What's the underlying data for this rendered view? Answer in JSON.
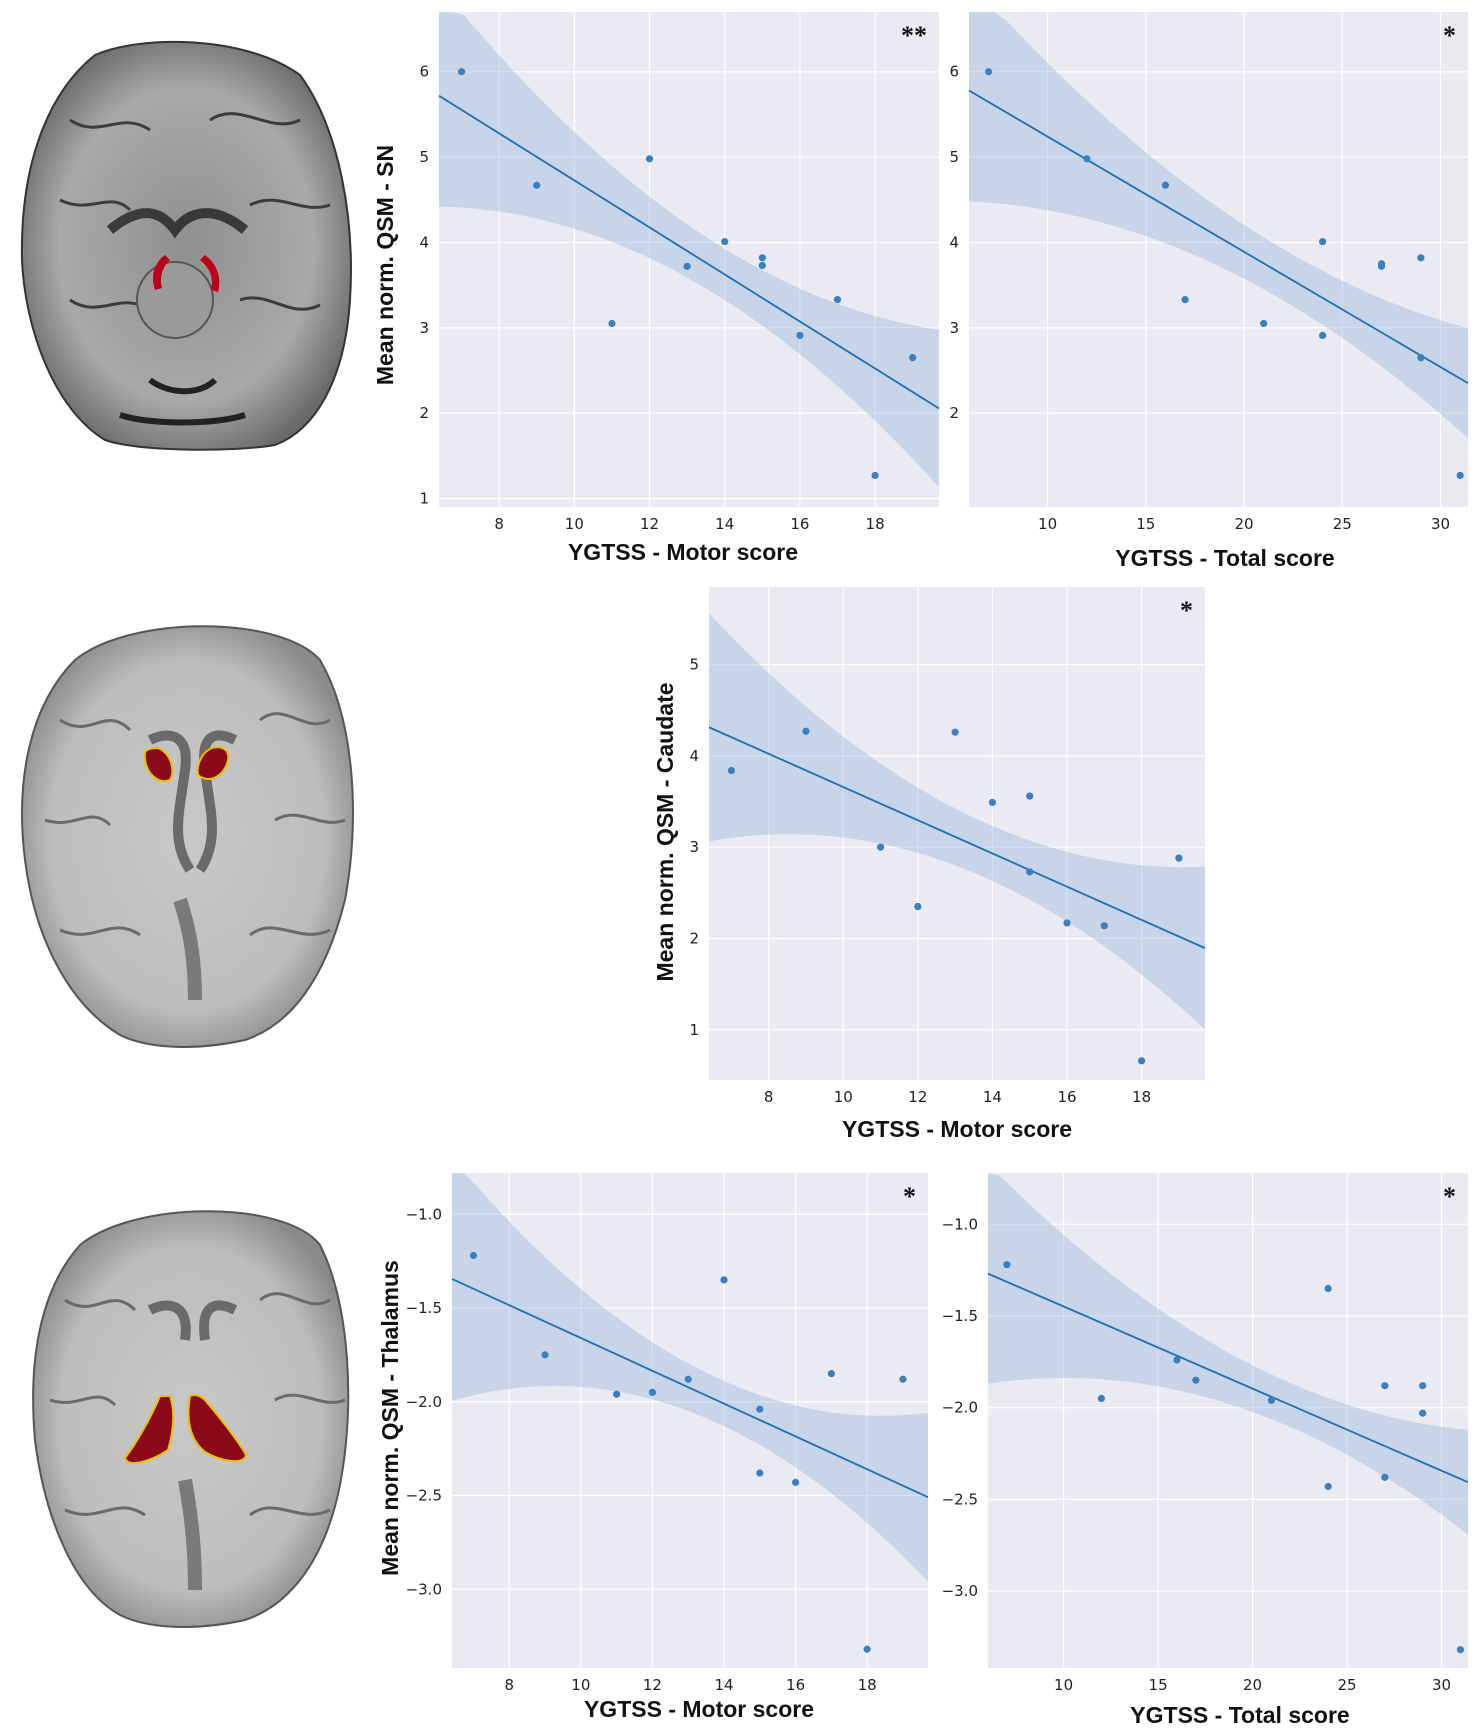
{
  "colors": {
    "point": "#3a7fbf",
    "fit_line": "#1f6fb4",
    "band": "#9fbcdb",
    "plot_bg": "#eaeaf2",
    "roi_red": "#c0001a",
    "roi_dark_red": "#8b0a1a"
  },
  "chart_data": [
    {
      "id": "sn_motor",
      "type": "scatter",
      "xlabel": "YGTSS - Motor score",
      "ylabel": "Mean norm. QSM - SN",
      "significance": "**",
      "xlim": [
        6.4,
        19.7
      ],
      "ylim": [
        0.9,
        6.7
      ],
      "xticks": [
        8,
        10,
        12,
        14,
        16,
        18
      ],
      "yticks": [
        1,
        2,
        3,
        4,
        5,
        6
      ],
      "tick_labels_x": [
        "8",
        "10",
        "12",
        "14",
        "16",
        "18"
      ],
      "tick_labels_y": [
        "1",
        "2",
        "3",
        "4",
        "5",
        "6"
      ],
      "points": [
        [
          7,
          6.0
        ],
        [
          9,
          4.67
        ],
        [
          11,
          3.05
        ],
        [
          12,
          4.98
        ],
        [
          13,
          3.72
        ],
        [
          14,
          4.01
        ],
        [
          15,
          3.82
        ],
        [
          15,
          3.73
        ],
        [
          16,
          2.91
        ],
        [
          17,
          3.33
        ],
        [
          18,
          1.27
        ],
        [
          19,
          2.65
        ]
      ],
      "fit": {
        "slope": -0.2755,
        "intercept": 7.482
      },
      "ci_half_edge": 1.3,
      "ci_half_center": 0.3
    },
    {
      "id": "sn_total",
      "type": "scatter",
      "xlabel": "YGTSS - Total score",
      "ylabel": "",
      "significance": "*",
      "xlim": [
        6.0,
        31.4
      ],
      "ylim": [
        0.9,
        6.7
      ],
      "xticks": [
        10,
        15,
        20,
        25,
        30
      ],
      "yticks": [
        2,
        3,
        4,
        5,
        6
      ],
      "tick_labels_x": [
        "10",
        "15",
        "20",
        "25",
        "30"
      ],
      "tick_labels_y": [
        "2",
        "3",
        "4",
        "5",
        "6"
      ],
      "points": [
        [
          7,
          6.0
        ],
        [
          12,
          4.98
        ],
        [
          16,
          4.67
        ],
        [
          17,
          3.33
        ],
        [
          21,
          3.05
        ],
        [
          24,
          4.01
        ],
        [
          24,
          2.91
        ],
        [
          27,
          3.75
        ],
        [
          27,
          3.72
        ],
        [
          29,
          3.82
        ],
        [
          29,
          2.65
        ],
        [
          31,
          1.27
        ]
      ],
      "fit": {
        "slope": -0.135,
        "intercept": 6.59
      },
      "ci_half_edge": 1.3,
      "ci_half_center": 0.3
    },
    {
      "id": "caudate_motor",
      "type": "scatter",
      "xlabel": "YGTSS - Motor score",
      "ylabel": "Mean norm. QSM - Caudate",
      "significance": "*",
      "xlim": [
        6.4,
        19.7
      ],
      "ylim": [
        0.45,
        5.85
      ],
      "xticks": [
        8,
        10,
        12,
        14,
        16,
        18
      ],
      "yticks": [
        1,
        2,
        3,
        4,
        5
      ],
      "tick_labels_x": [
        "8",
        "10",
        "12",
        "14",
        "16",
        "18"
      ],
      "tick_labels_y": [
        "1",
        "2",
        "3",
        "4",
        "5"
      ],
      "points": [
        [
          7,
          3.84
        ],
        [
          9,
          4.27
        ],
        [
          11,
          3.0
        ],
        [
          12,
          2.35
        ],
        [
          13,
          4.26
        ],
        [
          14,
          3.49
        ],
        [
          15,
          3.56
        ],
        [
          15,
          2.73
        ],
        [
          16,
          2.17
        ],
        [
          17,
          2.14
        ],
        [
          18,
          0.66
        ],
        [
          19,
          2.88
        ]
      ],
      "fit": {
        "slope": -0.1819,
        "intercept": 5.478
      },
      "ci_half_edge": 1.25,
      "ci_half_center": 0.3
    },
    {
      "id": "thalamus_motor",
      "type": "scatter",
      "xlabel": "YGTSS - Motor score",
      "ylabel": "Mean norm. QSM - Thalamus",
      "significance": "*",
      "xlim": [
        6.4,
        19.7
      ],
      "ylim": [
        -3.42,
        -0.78
      ],
      "xticks": [
        8,
        10,
        12,
        14,
        16,
        18
      ],
      "yticks": [
        -3.0,
        -2.5,
        -2.0,
        -1.5,
        -1.0
      ],
      "tick_labels_x": [
        "8",
        "10",
        "12",
        "14",
        "16",
        "18"
      ],
      "tick_labels_y": [
        "−3.0",
        "−2.5",
        "−2.0",
        "−1.5",
        "−1.0"
      ],
      "points": [
        [
          7,
          -1.22
        ],
        [
          9,
          -1.75
        ],
        [
          11,
          -1.96
        ],
        [
          12,
          -1.95
        ],
        [
          13,
          -1.88
        ],
        [
          14,
          -1.35
        ],
        [
          15,
          -2.04
        ],
        [
          15,
          -2.38
        ],
        [
          16,
          -2.43
        ],
        [
          17,
          -1.85
        ],
        [
          18,
          -3.32
        ],
        [
          19,
          -1.88
        ]
      ],
      "fit": {
        "slope": -0.0875,
        "intercept": -0.785
      },
      "ci_half_edge": 0.65,
      "ci_half_center": 0.12
    },
    {
      "id": "thalamus_total",
      "type": "scatter",
      "xlabel": "YGTSS - Total score",
      "ylabel": "",
      "significance": "*",
      "xlim": [
        6.0,
        31.4
      ],
      "ylim": [
        -3.42,
        -0.72
      ],
      "xticks": [
        10,
        15,
        20,
        25,
        30
      ],
      "yticks": [
        -3.0,
        -2.5,
        -2.0,
        -1.5,
        -1.0
      ],
      "tick_labels_x": [
        "10",
        "15",
        "20",
        "25",
        "30"
      ],
      "tick_labels_y": [
        "−3.0",
        "−2.5",
        "−2.0",
        "−1.5",
        "−1.0"
      ],
      "points": [
        [
          7,
          -1.22
        ],
        [
          12,
          -1.95
        ],
        [
          16,
          -1.74
        ],
        [
          17,
          -1.85
        ],
        [
          21,
          -1.96
        ],
        [
          24,
          -1.35
        ],
        [
          24,
          -2.43
        ],
        [
          27,
          -1.88
        ],
        [
          27,
          -2.38
        ],
        [
          29,
          -1.88
        ],
        [
          29,
          -2.03
        ],
        [
          31,
          -3.32
        ]
      ],
      "fit": {
        "slope": -0.0448,
        "intercept": -1.0
      },
      "ci_half_edge": 0.6,
      "ci_half_center": 0.12
    }
  ]
}
